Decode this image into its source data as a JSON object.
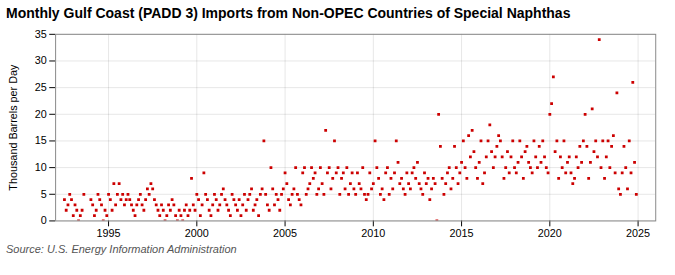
{
  "chart_data": {
    "type": "scatter",
    "title": "Monthly Gulf Coast (PADD 3) Imports from Non-OPEC Countries of Special Naphthas",
    "ylabel": "Thousand Barrels per Day",
    "source": "Source: U.S. Energy Information Administration",
    "color": "#cc0000",
    "marker": "square",
    "grid": true,
    "xlim": [
      1992.0,
      2026.0
    ],
    "ylim": [
      0,
      35
    ],
    "xticks": [
      1995,
      2000,
      2005,
      2010,
      2015,
      2020,
      2025
    ],
    "yticks": [
      0,
      5,
      10,
      15,
      20,
      25,
      30,
      35
    ],
    "x": [
      1992.5,
      1992.6,
      1992.7,
      1992.8,
      1992.9,
      1993.0,
      1993.1,
      1993.2,
      1993.3,
      1993.4,
      1993.5,
      1993.6,
      1994.0,
      1994.1,
      1994.2,
      1994.3,
      1994.4,
      1994.5,
      1994.6,
      1994.7,
      1994.8,
      1994.9,
      1995.0,
      1995.1,
      1995.2,
      1995.3,
      1995.4,
      1995.5,
      1995.6,
      1995.7,
      1995.8,
      1995.9,
      1996.0,
      1996.1,
      1996.2,
      1996.3,
      1996.4,
      1996.5,
      1996.6,
      1996.7,
      1996.8,
      1996.9,
      1997.0,
      1997.1,
      1997.2,
      1997.3,
      1997.4,
      1997.5,
      1997.6,
      1997.7,
      1997.8,
      1997.9,
      1998.0,
      1998.1,
      1998.2,
      1998.3,
      1998.4,
      1998.5,
      1998.6,
      1998.7,
      1998.8,
      1998.9,
      1999.0,
      1999.1,
      1999.2,
      1999.3,
      1999.4,
      1999.5,
      1999.6,
      1999.7,
      1999.8,
      1999.9,
      2000.0,
      2000.1,
      2000.2,
      2000.3,
      2000.4,
      2000.5,
      2000.6,
      2000.7,
      2000.8,
      2000.9,
      2001.0,
      2001.1,
      2001.2,
      2001.3,
      2001.4,
      2001.5,
      2001.6,
      2001.7,
      2001.8,
      2001.9,
      2002.0,
      2002.1,
      2002.2,
      2002.3,
      2002.4,
      2002.5,
      2002.6,
      2002.7,
      2002.8,
      2002.9,
      2003.0,
      2003.1,
      2003.2,
      2003.3,
      2003.4,
      2003.5,
      2003.6,
      2003.7,
      2003.8,
      2003.9,
      2004.0,
      2004.1,
      2004.2,
      2004.3,
      2004.4,
      2004.5,
      2004.6,
      2004.7,
      2004.8,
      2004.9,
      2005.0,
      2005.1,
      2005.2,
      2005.3,
      2005.4,
      2005.5,
      2005.6,
      2005.7,
      2005.8,
      2005.9,
      2006.0,
      2006.1,
      2006.2,
      2006.3,
      2006.4,
      2006.5,
      2006.6,
      2006.7,
      2006.8,
      2006.9,
      2007.0,
      2007.1,
      2007.2,
      2007.3,
      2007.4,
      2007.5,
      2007.6,
      2007.7,
      2007.8,
      2007.9,
      2008.0,
      2008.1,
      2008.2,
      2008.3,
      2008.4,
      2008.5,
      2008.6,
      2008.7,
      2008.8,
      2008.9,
      2009.0,
      2009.1,
      2009.2,
      2009.3,
      2009.4,
      2009.5,
      2009.6,
      2009.7,
      2009.8,
      2009.9,
      2010.0,
      2010.1,
      2010.2,
      2010.3,
      2010.4,
      2010.5,
      2010.6,
      2010.7,
      2010.8,
      2010.9,
      2011.0,
      2011.1,
      2011.2,
      2011.3,
      2011.4,
      2011.5,
      2011.6,
      2011.7,
      2011.8,
      2011.9,
      2012.0,
      2012.1,
      2012.2,
      2012.3,
      2012.4,
      2012.5,
      2012.6,
      2012.7,
      2012.8,
      2012.9,
      2013.0,
      2013.1,
      2013.2,
      2013.3,
      2013.4,
      2013.5,
      2013.6,
      2013.7,
      2013.8,
      2013.9,
      2014.0,
      2014.1,
      2014.2,
      2014.3,
      2014.4,
      2014.5,
      2014.6,
      2014.7,
      2014.8,
      2014.9,
      2015.0,
      2015.1,
      2015.2,
      2015.3,
      2015.4,
      2015.5,
      2015.6,
      2015.7,
      2015.8,
      2015.9,
      2016.0,
      2016.1,
      2016.2,
      2016.3,
      2016.4,
      2016.5,
      2016.6,
      2016.7,
      2016.8,
      2016.9,
      2017.0,
      2017.1,
      2017.2,
      2017.3,
      2017.4,
      2017.5,
      2017.6,
      2017.7,
      2017.8,
      2017.9,
      2018.0,
      2018.1,
      2018.2,
      2018.3,
      2018.4,
      2018.5,
      2018.6,
      2018.7,
      2018.8,
      2018.9,
      2019.0,
      2019.1,
      2019.2,
      2019.3,
      2019.4,
      2019.5,
      2019.6,
      2019.7,
      2019.8,
      2019.9,
      2020.0,
      2020.1,
      2020.2,
      2020.3,
      2020.4,
      2020.5,
      2020.6,
      2020.7,
      2020.8,
      2020.9,
      2021.0,
      2021.1,
      2021.2,
      2021.3,
      2021.4,
      2021.5,
      2021.6,
      2021.7,
      2021.8,
      2021.9,
      2022.0,
      2022.1,
      2022.2,
      2022.3,
      2022.4,
      2022.5,
      2022.6,
      2022.7,
      2022.8,
      2022.9,
      2023.0,
      2023.1,
      2023.2,
      2023.3,
      2023.4,
      2023.5,
      2023.6,
      2023.7,
      2023.8,
      2023.9,
      2024.0,
      2024.1,
      2024.2,
      2024.3,
      2024.4,
      2024.5,
      2024.6,
      2024.7,
      2024.8,
      2024.9
    ],
    "values": [
      4,
      2,
      3,
      5,
      4,
      1,
      3,
      2,
      0,
      1,
      2,
      5,
      4,
      3,
      1,
      2,
      5,
      4,
      3,
      0,
      2,
      1,
      5,
      4,
      2,
      7,
      3,
      5,
      7,
      4,
      5,
      3,
      4,
      5,
      4,
      3,
      2,
      1,
      3,
      4,
      5,
      3,
      2,
      4,
      6,
      5,
      7,
      6,
      4,
      3,
      2,
      1,
      3,
      2,
      0,
      1,
      3,
      2,
      4,
      3,
      1,
      0,
      2,
      1,
      0,
      2,
      3,
      1,
      2,
      8,
      3,
      2,
      5,
      4,
      1,
      3,
      9,
      5,
      4,
      2,
      1,
      3,
      5,
      4,
      2,
      3,
      5,
      6,
      4,
      3,
      2,
      1,
      5,
      4,
      3,
      2,
      4,
      1,
      3,
      5,
      2,
      4,
      5,
      6,
      2,
      3,
      4,
      1,
      5,
      6,
      15,
      5,
      3,
      2,
      10,
      6,
      3,
      5,
      4,
      2,
      5,
      6,
      9,
      7,
      4,
      3,
      5,
      6,
      10,
      5,
      4,
      3,
      9,
      10,
      5,
      6,
      7,
      10,
      8,
      9,
      5,
      6,
      10,
      7,
      5,
      17,
      9,
      10,
      6,
      8,
      15,
      9,
      10,
      5,
      8,
      9,
      6,
      10,
      5,
      7,
      9,
      6,
      5,
      9,
      7,
      6,
      10,
      5,
      4,
      5,
      9,
      6,
      7,
      15,
      10,
      8,
      5,
      6,
      4,
      9,
      10,
      5,
      8,
      6,
      9,
      15,
      11,
      7,
      8,
      6,
      5,
      9,
      7,
      6,
      9,
      10,
      8,
      11,
      7,
      6,
      5,
      9,
      7,
      8,
      4,
      6,
      8,
      7,
      0,
      20,
      14,
      8,
      5,
      7,
      9,
      10,
      6,
      8,
      14,
      10,
      7,
      9,
      11,
      15,
      10,
      8,
      16,
      12,
      17,
      13,
      10,
      8,
      11,
      15,
      7,
      9,
      12,
      15,
      18,
      13,
      10,
      12,
      14,
      16,
      15,
      12,
      8,
      10,
      13,
      9,
      12,
      15,
      10,
      9,
      11,
      15,
      12,
      8,
      13,
      14,
      11,
      10,
      9,
      15,
      12,
      10,
      14,
      11,
      15,
      12,
      10,
      9,
      20,
      22,
      27,
      13,
      15,
      8,
      12,
      10,
      15,
      9,
      11,
      12,
      9,
      7,
      8,
      12,
      10,
      14,
      11,
      15,
      20,
      14,
      8,
      11,
      21,
      13,
      15,
      12,
      34,
      10,
      15,
      8,
      12,
      15,
      10,
      14,
      16,
      9,
      24,
      6,
      5,
      9,
      14,
      10,
      6,
      15,
      9,
      26,
      11,
      5
    ]
  }
}
